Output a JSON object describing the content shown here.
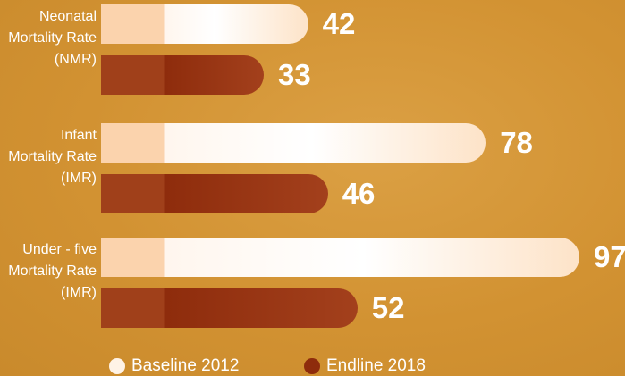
{
  "chart_data": {
    "type": "bar",
    "orientation": "horizontal",
    "categories": [
      "Neonatal Mortality Rate (NMR)",
      "Infant Mortality Rate (IMR)",
      "Under - five Mortality Rate (IMR)"
    ],
    "series": [
      {
        "name": "Baseline 2012",
        "color": "#fde3c8",
        "values": [
          42,
          78,
          97
        ]
      },
      {
        "name": "Endline 2018",
        "color": "#8e2c0c",
        "values": [
          33,
          46,
          52
        ]
      }
    ],
    "legend": "bottom"
  }
}
